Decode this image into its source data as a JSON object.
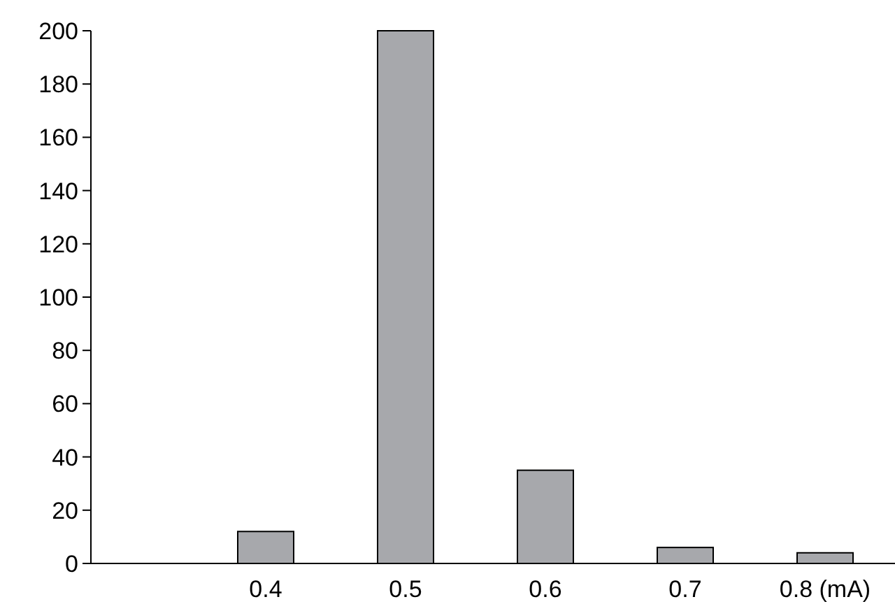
{
  "chart_data": {
    "type": "bar",
    "categories": [
      null,
      "0.4",
      "0.5",
      "0.6",
      "0.7",
      "0.8 (mA)"
    ],
    "values": [
      null,
      12,
      200,
      35,
      6,
      4
    ],
    "color": "#a7a8ac",
    "ylim": [
      0,
      200
    ],
    "yticks": [
      0,
      20,
      40,
      60,
      80,
      100,
      120,
      140,
      160,
      180,
      200
    ],
    "grid": false
  }
}
